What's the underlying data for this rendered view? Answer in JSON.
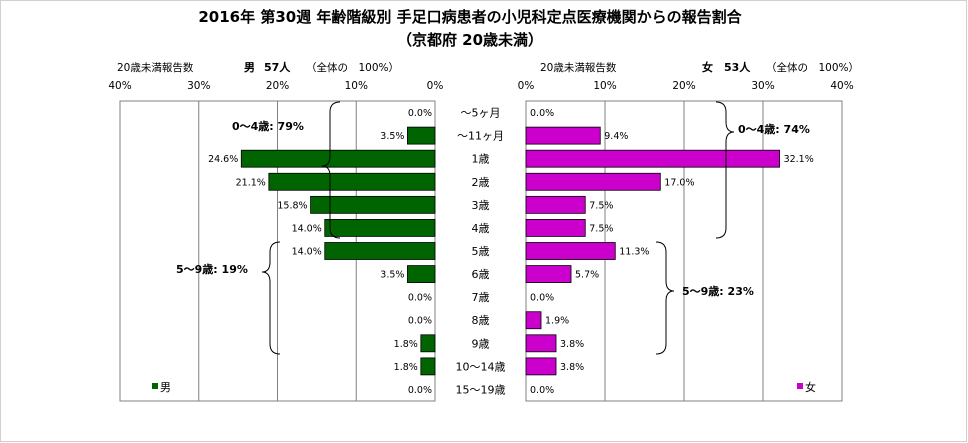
{
  "title": {
    "line1": "2016年 第30週 年齢階級別 手足口病患者の小児科定点医療機関からの報告割合",
    "line2": "（京都府 20歳未満）"
  },
  "headers": {
    "left_caption": "20歳未満報告数",
    "left_sex": "男",
    "left_count": "57人",
    "left_note": "（全体の　100%）",
    "right_caption": "20歳未満報告数",
    "right_sex": "女",
    "right_count": "53人",
    "right_note": "（全体の　100%）"
  },
  "chart_data": {
    "type": "bar",
    "orientation": "horizontal-butterfly",
    "categories": [
      "～5ヶ月",
      "～11ヶ月",
      "1歳",
      "2歳",
      "3歳",
      "4歳",
      "5歳",
      "6歳",
      "7歳",
      "8歳",
      "9歳",
      "10～14歳",
      "15～19歳"
    ],
    "series": [
      {
        "name": "男",
        "color": "#006400",
        "values": [
          0.0,
          3.5,
          24.6,
          21.1,
          15.8,
          14.0,
          14.0,
          3.5,
          0.0,
          0.0,
          1.8,
          1.8,
          0.0
        ],
        "labels": [
          "0.0%",
          "3.5%",
          "24.6%",
          "21.1%",
          "15.8%",
          "14.0%",
          "14.0%",
          "3.5%",
          "0.0%",
          "0.0%",
          "1.8%",
          "1.8%",
          "0.0%"
        ]
      },
      {
        "name": "女",
        "color": "#cc00cc",
        "values": [
          0.0,
          9.4,
          32.1,
          17.0,
          7.5,
          7.5,
          11.3,
          5.7,
          0.0,
          1.9,
          3.8,
          3.8,
          0.0
        ],
        "labels": [
          "0.0%",
          "9.4%",
          "32.1%",
          "17.0%",
          "7.5%",
          "7.5%",
          "11.3%",
          "5.7%",
          "0.0%",
          "1.9%",
          "3.8%",
          "3.8%",
          "0.0%"
        ]
      }
    ],
    "x_ticks_left": [
      "40%",
      "30%",
      "20%",
      "10%",
      "0%"
    ],
    "x_ticks_right": [
      "0%",
      "10%",
      "20%",
      "30%",
      "40%"
    ],
    "xlim": [
      0,
      40
    ],
    "grid": true,
    "legend_placement": "bottom-left and bottom-right",
    "annotations": {
      "male_0_4": "0～4歳: 79%",
      "male_5_9": "5～9歳: 19%",
      "female_0_4": "0～4歳: 74%",
      "female_5_9": "5～9歳: 23%"
    }
  }
}
